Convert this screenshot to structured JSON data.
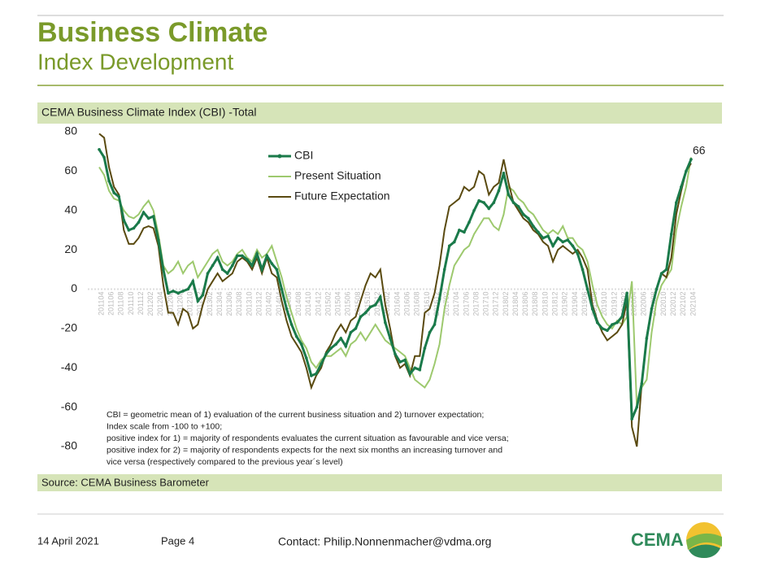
{
  "header": {
    "title": "Business Climate",
    "subtitle": "Index Development"
  },
  "footer": {
    "date": "14 April 2021",
    "page": "Page 4",
    "contact": "Contact: Philip.Nonnenmacher@vdma.org",
    "logo": "CEMA"
  },
  "chart_data": {
    "type": "line",
    "title": "CEMA Business Climate Index (CBI) -Total",
    "source": "Source: CEMA Business Barometer",
    "annotation": "66",
    "note": [
      "CBI = geometric mean of 1) evaluation of the current business situation and 2) turnover expectation;",
      "Index scale from -100 to +100;",
      "positive index for 1) = majority of respondents evaluates the current situation as favourable and vice versa;",
      "positive index for 2) = majority of respondents expects for the next six months an increasing turnover and",
      "vice versa (respectively compared to the previous year´s level)"
    ],
    "ylim": [
      -80,
      80
    ],
    "yticks": [
      -80,
      -60,
      -40,
      -20,
      0,
      20,
      40,
      60,
      80
    ],
    "legend": "top",
    "categories": [
      "201104",
      null,
      "201106",
      null,
      "201108",
      null,
      "201110",
      null,
      "201112",
      null,
      "201202",
      null,
      "201204",
      null,
      "201206",
      null,
      "201208",
      null,
      "201210",
      null,
      "201212",
      null,
      "201302",
      null,
      "201304",
      null,
      "201306",
      null,
      "201308",
      null,
      "201310",
      null,
      "201312",
      null,
      "201402",
      null,
      "201404",
      null,
      "201406",
      null,
      "201408",
      null,
      "201410",
      null,
      "201412",
      null,
      "201502",
      null,
      "201504",
      null,
      "201506",
      null,
      "201508",
      null,
      "201510",
      null,
      "201512",
      null,
      "201602",
      null,
      "201604",
      null,
      "201606",
      null,
      "201608",
      null,
      "201610",
      null,
      "201612",
      null,
      "201702",
      null,
      "201704",
      null,
      "201706",
      null,
      "201708",
      null,
      "201710",
      null,
      "201712",
      null,
      "201802",
      null,
      "201804",
      null,
      "201806",
      null,
      "201808",
      null,
      "201810",
      null,
      "201812",
      null,
      "201902",
      null,
      "201904",
      null,
      "201906",
      null,
      "201908",
      null,
      "201910",
      null,
      "201912",
      null,
      "202002",
      null,
      "202004",
      null,
      "202006",
      null,
      "202008",
      null,
      "202010",
      null,
      "202012",
      null,
      "202102",
      null,
      "202104"
    ],
    "series": [
      {
        "name": "CBI",
        "color": "#1a7a4a",
        "markers": true,
        "values": [
          71,
          67,
          55,
          49,
          47,
          35,
          30,
          31,
          34,
          39,
          36,
          37,
          25,
          10,
          -2,
          -1,
          -2,
          -1,
          0,
          4,
          -6,
          -3,
          8,
          12,
          16,
          10,
          8,
          12,
          17,
          17,
          15,
          12,
          18,
          10,
          17,
          13,
          10,
          0,
          -10,
          -18,
          -24,
          -28,
          -35,
          -44,
          -43,
          -38,
          -33,
          -30,
          -28,
          -25,
          -29,
          -22,
          -20,
          -14,
          -12,
          -9,
          -8,
          -4,
          -17,
          -25,
          -33,
          -37,
          -36,
          -43,
          -40,
          -41,
          -30,
          -22,
          -18,
          -5,
          10,
          22,
          24,
          30,
          29,
          34,
          40,
          45,
          44,
          41,
          44,
          50,
          59,
          48,
          44,
          42,
          38,
          36,
          32,
          29,
          26,
          27,
          22,
          26,
          24,
          25,
          22,
          18,
          10,
          0,
          -10,
          -17,
          -20,
          -21,
          -18,
          -17,
          -14,
          -2,
          -66,
          -60,
          -48,
          -25,
          -10,
          0,
          8,
          10,
          28,
          44,
          52,
          60,
          66
        ]
      },
      {
        "name": "Present Situation",
        "color": "#9dc96e",
        "values": [
          62,
          58,
          50,
          46,
          45,
          40,
          37,
          36,
          38,
          42,
          45,
          40,
          28,
          12,
          8,
          10,
          14,
          8,
          12,
          14,
          6,
          10,
          14,
          18,
          20,
          14,
          12,
          14,
          18,
          20,
          16,
          14,
          20,
          16,
          18,
          22,
          14,
          6,
          -4,
          -12,
          -20,
          -26,
          -30,
          -37,
          -40,
          -36,
          -34,
          -34,
          -32,
          -30,
          -34,
          -28,
          -26,
          -22,
          -26,
          -22,
          -18,
          -22,
          -26,
          -28,
          -30,
          -32,
          -34,
          -40,
          -46,
          -48,
          -50,
          -46,
          -38,
          -28,
          -10,
          2,
          12,
          16,
          20,
          22,
          28,
          32,
          36,
          36,
          32,
          30,
          38,
          52,
          50,
          46,
          44,
          40,
          38,
          34,
          30,
          28,
          30,
          28,
          32,
          26,
          26,
          22,
          20,
          14,
          2,
          -8,
          -14,
          -18,
          -20,
          -16,
          -18,
          -14,
          4,
          -60,
          -50,
          -46,
          -22,
          -6,
          2,
          6,
          10,
          30,
          42,
          52,
          67
        ]
      },
      {
        "name": "Future Expectation",
        "color": "#5a4a10",
        "values": [
          79,
          77,
          62,
          52,
          48,
          30,
          23,
          23,
          26,
          31,
          32,
          31,
          22,
          2,
          -12,
          -12,
          -18,
          -10,
          -12,
          -20,
          -18,
          -8,
          0,
          4,
          8,
          4,
          6,
          8,
          14,
          16,
          14,
          10,
          16,
          8,
          16,
          8,
          6,
          -6,
          -16,
          -24,
          -28,
          -32,
          -40,
          -50,
          -44,
          -40,
          -32,
          -28,
          -22,
          -18,
          -22,
          -16,
          -14,
          -6,
          2,
          8,
          6,
          10,
          -8,
          -20,
          -34,
          -40,
          -38,
          -44,
          -34,
          -34,
          -12,
          -10,
          -2,
          12,
          30,
          42,
          44,
          46,
          52,
          50,
          52,
          60,
          58,
          48,
          52,
          54,
          66,
          54,
          44,
          40,
          36,
          34,
          30,
          28,
          24,
          22,
          14,
          20,
          22,
          20,
          18,
          20,
          16,
          10,
          -8,
          -16,
          -22,
          -26,
          -24,
          -22,
          -18,
          -6,
          -70,
          -80,
          -48,
          -24,
          -10,
          0,
          8,
          6,
          16,
          38,
          50,
          60,
          64
        ]
      }
    ]
  }
}
